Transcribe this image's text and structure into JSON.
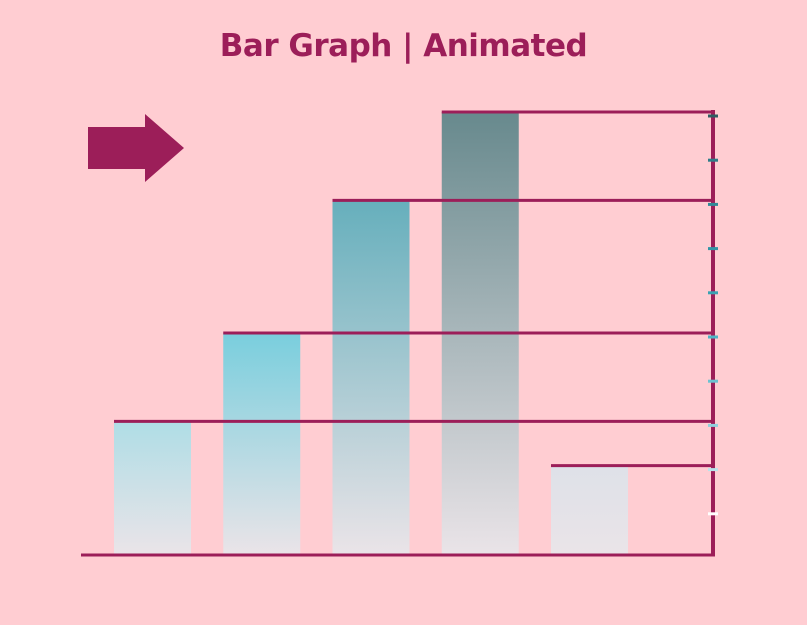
{
  "title": "Bar Graph | Animated",
  "icons": {
    "arrow": "right-arrow-icon"
  },
  "colors": {
    "background": "#ffcdd2",
    "accent": "#9c1e59",
    "bar_gradients": [
      [
        "#afdde6",
        "#eae4e8"
      ],
      [
        "#79cedd",
        "#eae4e8"
      ],
      [
        "#66afbc",
        "#eae4e8"
      ],
      [
        "#67898d",
        "#eae4e8"
      ],
      [
        "#dee1e8",
        "#eae4e8"
      ]
    ],
    "tick_colors": [
      "#2d5e63",
      "#2f7d89",
      "#2f8a98",
      "#3395a6",
      "#3aa2b3",
      "#4cb5c6",
      "#6cc2d1",
      "#8fd2de",
      "#b8e4ec",
      "#ffffff"
    ]
  },
  "chart_data": {
    "type": "bar",
    "categories": [
      "",
      "",
      "",
      "",
      ""
    ],
    "values": [
      30,
      50,
      80,
      100,
      20
    ],
    "ylim": [
      0,
      100
    ],
    "ticks": 10,
    "grid": false,
    "legend": "none"
  }
}
